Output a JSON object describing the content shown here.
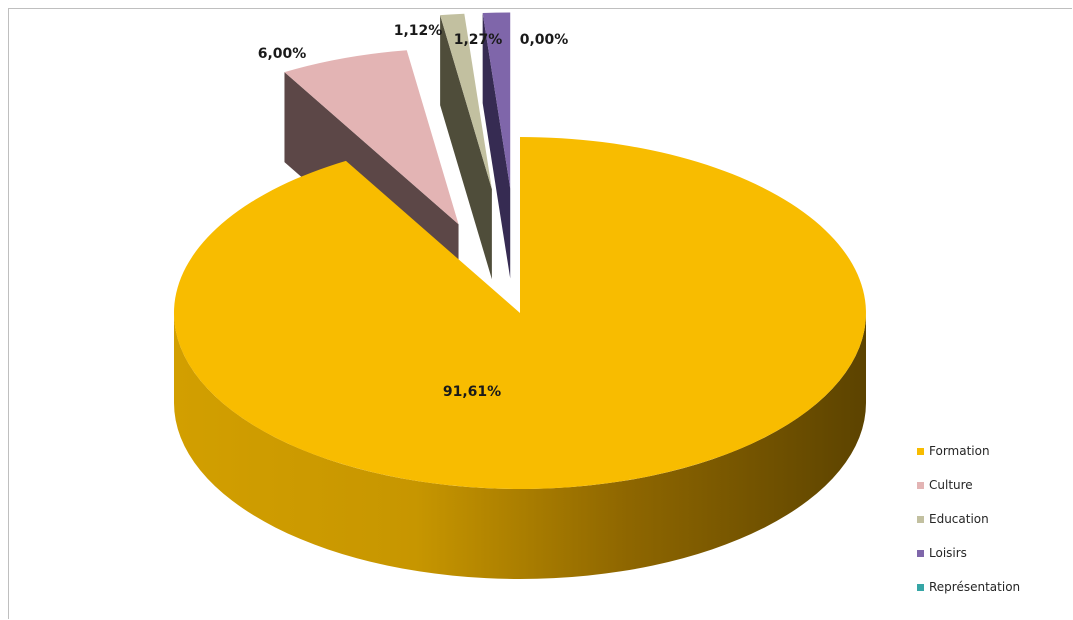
{
  "chart_data": {
    "type": "pie",
    "style": "3d exploded",
    "legend_position": "bottom-right",
    "categories": [
      "Formation",
      "Culture",
      "Education",
      "Loisirs",
      "Représentation"
    ],
    "values": [
      91.61,
      6.0,
      1.12,
      1.27,
      0.0
    ],
    "data_labels": [
      "91,61%",
      "6,00%",
      "1,12%",
      "1,27%",
      "0,00%"
    ],
    "colors": [
      "#f8bc00",
      "#e3b4b4",
      "#c2c0a0",
      "#7f66aa",
      "#36a6a6"
    ],
    "dark_colors": [
      "#b48600",
      "#5c4747",
      "#4f4d3a",
      "#362b52",
      "#1c5a5a"
    ]
  }
}
